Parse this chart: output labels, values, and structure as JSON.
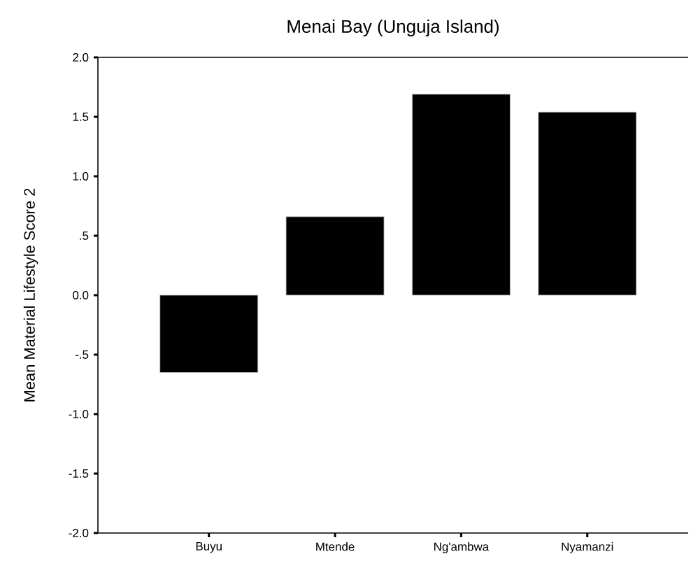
{
  "chart_data": {
    "type": "bar",
    "title": "Menai Bay (Unguja Island)",
    "ylabel": "Mean Material Lifestyle Score 2",
    "categories": [
      "Buyu",
      "Mtende",
      "Ng'ambwa",
      "Nyamanzi"
    ],
    "values": [
      -0.65,
      0.66,
      1.69,
      1.54
    ],
    "color": "#000000",
    "ylim": [
      -2.0,
      2.0
    ],
    "yticks": [
      {
        "value": -2.0,
        "label": "-2.0"
      },
      {
        "value": -1.5,
        "label": "-1.5"
      },
      {
        "value": -1.0,
        "label": "-1.0"
      },
      {
        "value": -0.5,
        "label": "-.5"
      },
      {
        "value": 0.0,
        "label": "0.0"
      },
      {
        "value": 0.5,
        "label": ".5"
      },
      {
        "value": 1.0,
        "label": "1.0"
      },
      {
        "value": 1.5,
        "label": "1.5"
      },
      {
        "value": 2.0,
        "label": "2.0"
      }
    ],
    "grid": false
  }
}
